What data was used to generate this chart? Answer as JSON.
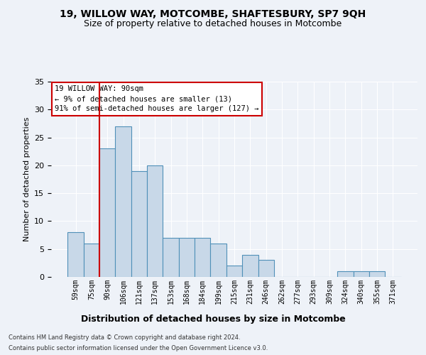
{
  "title": "19, WILLOW WAY, MOTCOMBE, SHAFTESBURY, SP7 9QH",
  "subtitle": "Size of property relative to detached houses in Motcombe",
  "xlabel": "Distribution of detached houses by size in Motcombe",
  "ylabel": "Number of detached properties",
  "categories": [
    "59sqm",
    "75sqm",
    "90sqm",
    "106sqm",
    "121sqm",
    "137sqm",
    "153sqm",
    "168sqm",
    "184sqm",
    "199sqm",
    "215sqm",
    "231sqm",
    "246sqm",
    "262sqm",
    "277sqm",
    "293sqm",
    "309sqm",
    "324sqm",
    "340sqm",
    "355sqm",
    "371sqm"
  ],
  "values": [
    8,
    6,
    23,
    27,
    19,
    20,
    7,
    7,
    7,
    6,
    2,
    4,
    3,
    0,
    0,
    0,
    0,
    1,
    1,
    1,
    0
  ],
  "bar_color": "#c8d8e8",
  "bar_edge_color": "#5090b8",
  "vline_color": "#cc0000",
  "ylim": [
    0,
    35
  ],
  "yticks": [
    0,
    5,
    10,
    15,
    20,
    25,
    30,
    35
  ],
  "annotation_text": "19 WILLOW WAY: 90sqm\n← 9% of detached houses are smaller (13)\n91% of semi-detached houses are larger (127) →",
  "annotation_box_color": "#ffffff",
  "annotation_box_edge": "#cc0000",
  "bg_color": "#eef2f8",
  "grid_color": "#ffffff",
  "footer1": "Contains HM Land Registry data © Crown copyright and database right 2024.",
  "footer2": "Contains public sector information licensed under the Open Government Licence v3.0."
}
